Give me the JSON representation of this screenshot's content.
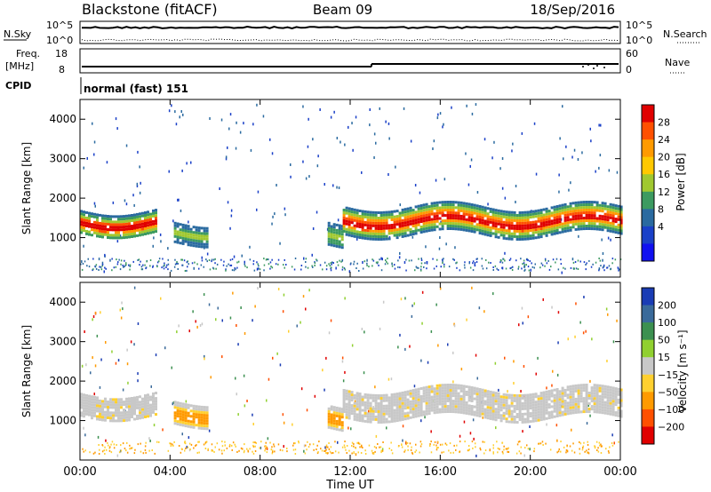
{
  "header": {
    "station": "Blackstone (fitACF)",
    "beam": "Beam 09",
    "date": "18/Sep/2016"
  },
  "noise_panel": {
    "left_label": "N.Sky",
    "right_label": "N.Search",
    "tick_top": "10^5",
    "tick_bottom": "10^0"
  },
  "freq_panel": {
    "left_label_line1": "Freq.",
    "left_label_line2": "[MHz]",
    "right_label": "Nave",
    "left_ticks": [
      "18",
      "8"
    ],
    "right_ticks": [
      "60",
      "0"
    ]
  },
  "cpid_panel": {
    "label": "CPID",
    "value": "normal (fast) 151"
  },
  "chart_data": [
    {
      "type": "heatmap",
      "name": "power",
      "ylabel": "Slant Range [km]",
      "ylim": [
        0,
        4500
      ],
      "yticks": [
        "1000",
        "2000",
        "3000",
        "4000"
      ],
      "colorbar": {
        "label": "Power [dB]",
        "ticks": [
          "28",
          "24",
          "20",
          "16",
          "12",
          "8",
          "4"
        ],
        "colors": [
          "#e00000",
          "#ff5000",
          "#ff9a00",
          "#ffc800",
          "#a0c830",
          "#3c9a60",
          "#2a6aa0",
          "#1a40c8",
          "#1010f0"
        ]
      },
      "bands": [
        {
          "from": "00:00",
          "to": "03:20",
          "range_km": [
            1100,
            1700
          ],
          "level": "high"
        },
        {
          "from": "04:10",
          "to": "05:40",
          "range_km": [
            900,
            1400
          ],
          "level": "medium"
        },
        {
          "from": "11:00",
          "to": "11:40",
          "range_km": [
            800,
            1400
          ],
          "level": "medium"
        },
        {
          "from": "11:40",
          "to": "24:00",
          "range_km": [
            1100,
            1800
          ],
          "level": "high"
        }
      ]
    },
    {
      "type": "heatmap",
      "name": "velocity",
      "ylabel": "Slant Range [km]",
      "ylim": [
        0,
        4500
      ],
      "yticks": [
        "1000",
        "2000",
        "3000",
        "4000"
      ],
      "colorbar": {
        "label": "Velocity [m s⁻¹]",
        "ticks": [
          "200",
          "100",
          "50",
          "15",
          "−15",
          "−50",
          "−100",
          "−200"
        ],
        "colors": [
          "#1a3cb4",
          "#3a6a9a",
          "#3c9050",
          "#90d030",
          "#c8c8c8",
          "#ffd030",
          "#ff9a00",
          "#ff5000",
          "#e00000"
        ]
      },
      "bands": [
        {
          "from": "00:00",
          "to": "03:20",
          "range_km": [
            1100,
            1700
          ],
          "level": "ground"
        },
        {
          "from": "04:10",
          "to": "05:40",
          "range_km": [
            900,
            1500
          ],
          "level": "negative"
        },
        {
          "from": "11:00",
          "to": "11:40",
          "range_km": [
            800,
            1400
          ],
          "level": "negative"
        },
        {
          "from": "11:40",
          "to": "24:00",
          "range_km": [
            1100,
            1800
          ],
          "level": "ground"
        }
      ]
    }
  ],
  "x_axis": {
    "label": "Time UT",
    "ticks": [
      "00:00",
      "04:00",
      "08:00",
      "12:00",
      "16:00",
      "20:00",
      "00:00"
    ]
  }
}
